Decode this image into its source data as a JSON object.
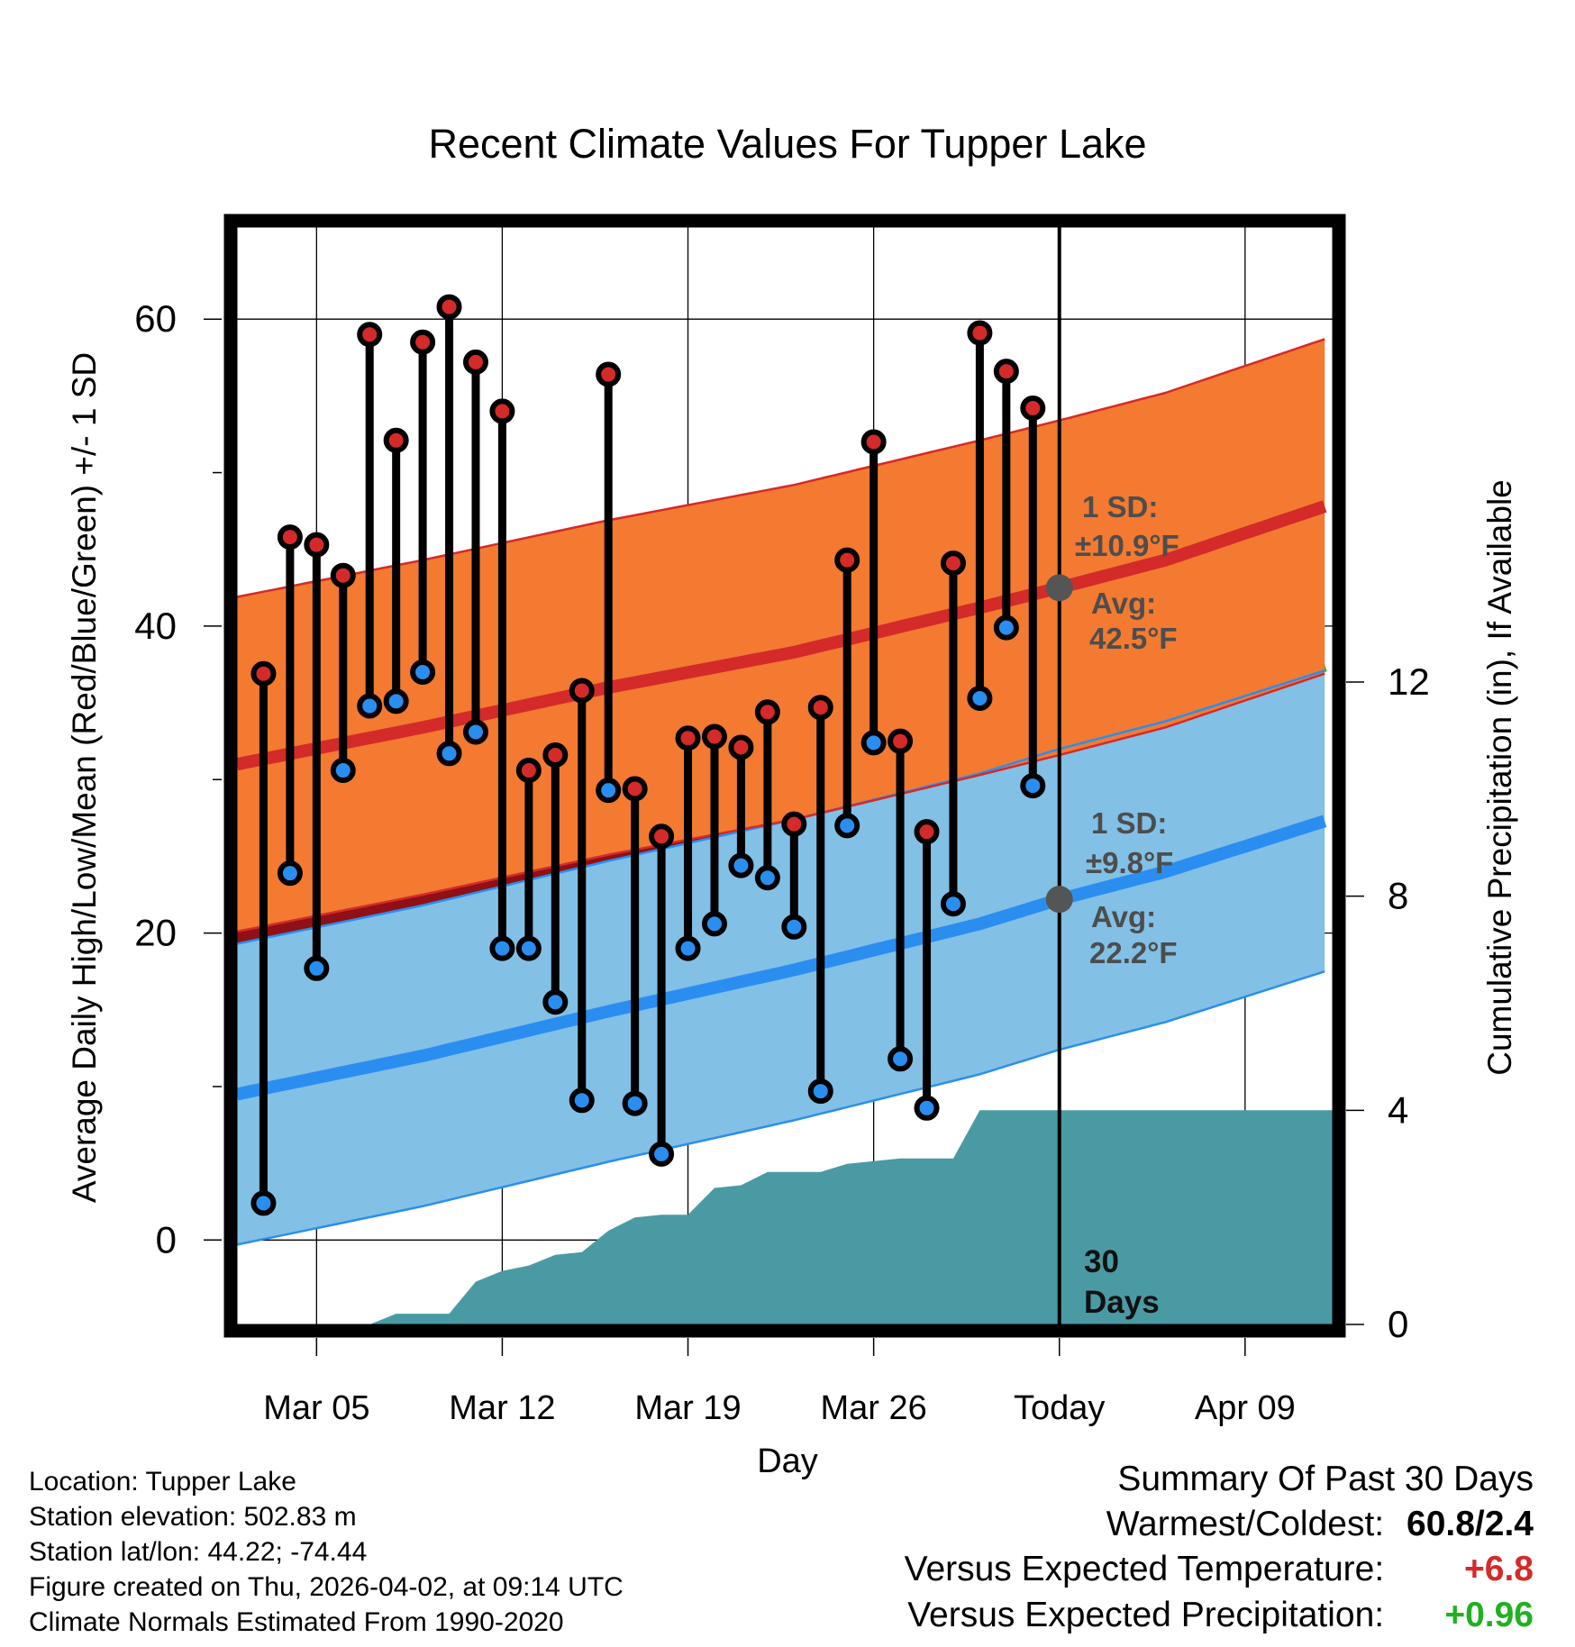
{
  "chart_data": {
    "type": "line",
    "title": "Recent Climate Values For Tupper Lake",
    "xlabel": "Day",
    "ylabel": "Average Daily High/Low/Mean (Red/Blue/Green) +/- 1 SD",
    "y2label": "Cumulative Precipitation (in), If Available",
    "ylim": [
      -5.5,
      66
    ],
    "y2lim": [
      0,
      20.5
    ],
    "xlim": [
      0,
      41.3
    ],
    "yticks": [
      0,
      20,
      40,
      60
    ],
    "y2ticks": [
      0,
      4,
      8,
      12
    ],
    "xticks": [
      {
        "day": 3,
        "label": "Mar 05"
      },
      {
        "day": 10,
        "label": "Mar 12"
      },
      {
        "day": 17,
        "label": "Mar 19"
      },
      {
        "day": 24,
        "label": "Mar 26"
      },
      {
        "day": 31,
        "label": "Today"
      },
      {
        "day": 38,
        "label": "Apr 09"
      }
    ],
    "today_day": 31,
    "today_label": "30 Days",
    "normals": {
      "days": [
        0,
        7,
        14,
        21,
        28,
        31,
        35,
        41
      ],
      "high_mean": [
        31.0,
        33.4,
        36.0,
        38.3,
        41.2,
        42.5,
        44.3,
        47.8
      ],
      "high_sd": 10.9,
      "low_mean": [
        9.5,
        12.0,
        14.9,
        17.6,
        20.6,
        22.2,
        24.0,
        27.3
      ],
      "low_sd": 9.8,
      "mean_mean": [
        20.8,
        23.1,
        25.7,
        28.5,
        31.2,
        32.5,
        34.2,
        37.5
      ]
    },
    "annotations": {
      "high": {
        "sd_title": "1 SD:",
        "sd_value": "±10.9°F",
        "avg_title": "Avg:",
        "avg_value": "42.5°F",
        "avg": 42.5
      },
      "low": {
        "sd_title": "1 SD:",
        "sd_value": "±9.8°F",
        "avg_title": "Avg:",
        "avg_value": "22.2°F",
        "avg": 22.2
      }
    },
    "series": [
      {
        "name": "Daily High",
        "color": "#d42a2a",
        "days": [
          1,
          2,
          3,
          4,
          5,
          6,
          7,
          8,
          9,
          10,
          11,
          12,
          13,
          14,
          15,
          16,
          17,
          18,
          19,
          20,
          21,
          22,
          23,
          24,
          25,
          26,
          27,
          28,
          29,
          30
        ],
        "values": [
          36.9,
          45.8,
          45.3,
          43.3,
          59.0,
          52.1,
          58.5,
          60.8,
          57.2,
          54.0,
          30.6,
          31.6,
          35.8,
          56.4,
          29.4,
          26.3,
          32.7,
          32.8,
          32.1,
          34.4,
          27.1,
          34.7,
          44.3,
          52.0,
          32.5,
          26.6,
          44.1,
          59.1,
          56.6,
          54.2
        ]
      },
      {
        "name": "Daily Low",
        "color": "#2a8ef0",
        "days": [
          1,
          2,
          3,
          4,
          5,
          6,
          7,
          8,
          9,
          10,
          11,
          12,
          13,
          14,
          15,
          16,
          17,
          18,
          19,
          20,
          21,
          22,
          23,
          24,
          25,
          26,
          27,
          28,
          29,
          30
        ],
        "values": [
          2.4,
          23.9,
          17.7,
          30.6,
          34.8,
          35.1,
          37.0,
          31.7,
          33.1,
          19.0,
          19.0,
          15.5,
          9.1,
          29.3,
          8.9,
          5.6,
          19.0,
          20.6,
          24.4,
          23.6,
          20.4,
          9.7,
          27.0,
          32.4,
          11.8,
          8.6,
          21.9,
          35.3,
          39.9,
          29.6
        ]
      },
      {
        "name": "Cumulative Precipitation",
        "color": "#4a9aa4",
        "days": [
          0,
          3,
          5,
          6,
          8,
          9,
          10,
          11,
          12,
          13,
          14,
          15,
          16,
          17,
          18,
          19,
          20,
          21,
          22,
          23,
          24,
          25,
          26,
          27,
          28,
          29,
          30,
          31,
          41.3
        ],
        "values": [
          0,
          0,
          0,
          0.2,
          0.2,
          0.8,
          1.0,
          1.1,
          1.3,
          1.35,
          1.75,
          2.0,
          2.05,
          2.05,
          2.55,
          2.6,
          2.85,
          2.85,
          2.85,
          3.0,
          3.05,
          3.1,
          3.1,
          3.1,
          4.0,
          4.0,
          4.0,
          4.0,
          4.0
        ]
      }
    ]
  },
  "footer": {
    "location": "Location: Tupper Lake",
    "elevation": "Station elevation: 502.83 m",
    "latlon": "Station lat/lon: 44.22; -74.44",
    "created": "Figure created on Thu, 2026-04-02, at 09:14 UTC",
    "normals": "Climate Normals Estimated From 1990-2020"
  },
  "summary": {
    "title": "Summary Of Past 30 Days",
    "warm_cold_label": "Warmest/Coldest:",
    "warm_cold_value": "60.8/2.4",
    "temp_label": "Versus Expected Temperature:",
    "temp_value": "+6.8",
    "temp_color": "#d42a2a",
    "precip_label": "Versus Expected Precipitation:",
    "precip_value": "+0.96",
    "precip_color": "#22b022"
  }
}
